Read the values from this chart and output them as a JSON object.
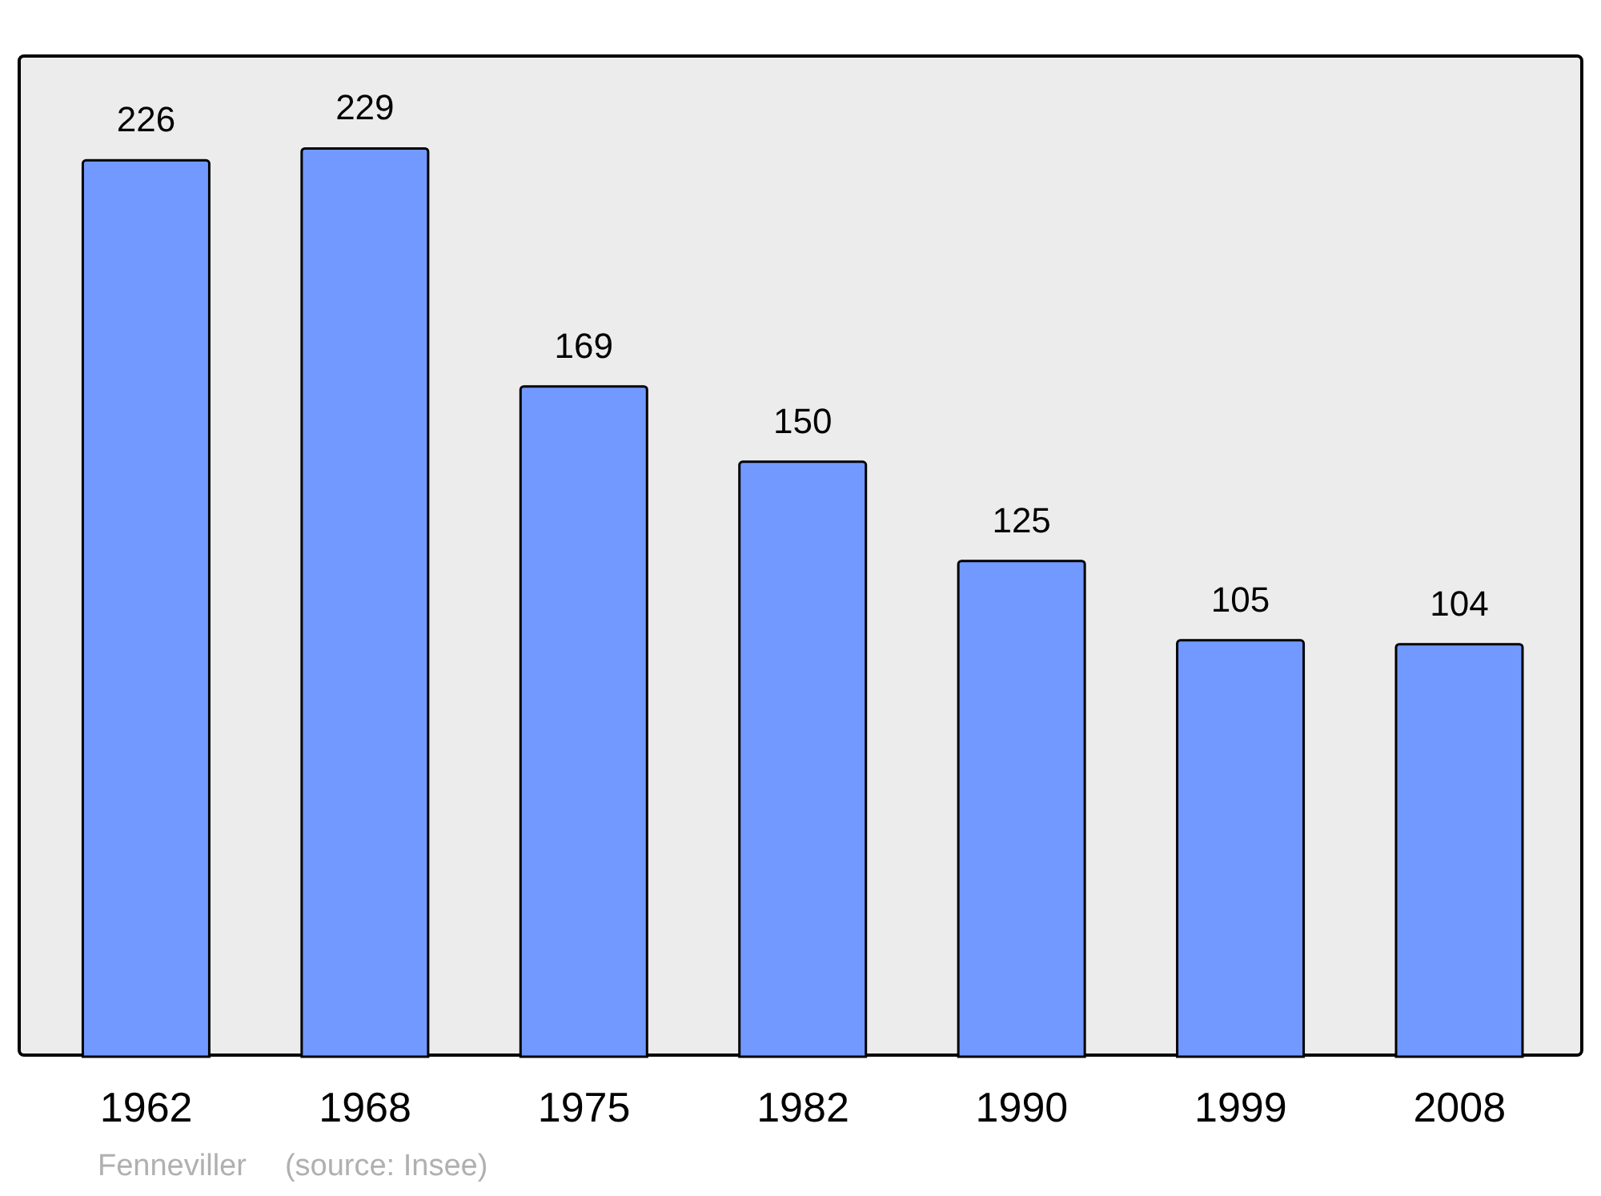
{
  "chart_data": {
    "type": "bar",
    "categories": [
      "1962",
      "1968",
      "1975",
      "1982",
      "1990",
      "1999",
      "2008"
    ],
    "values": [
      226,
      229,
      169,
      150,
      125,
      105,
      104
    ],
    "color": "#7299ff",
    "data_labels": true,
    "annotations": [
      "Fenneviller",
      "(source: Insee)"
    ]
  }
}
